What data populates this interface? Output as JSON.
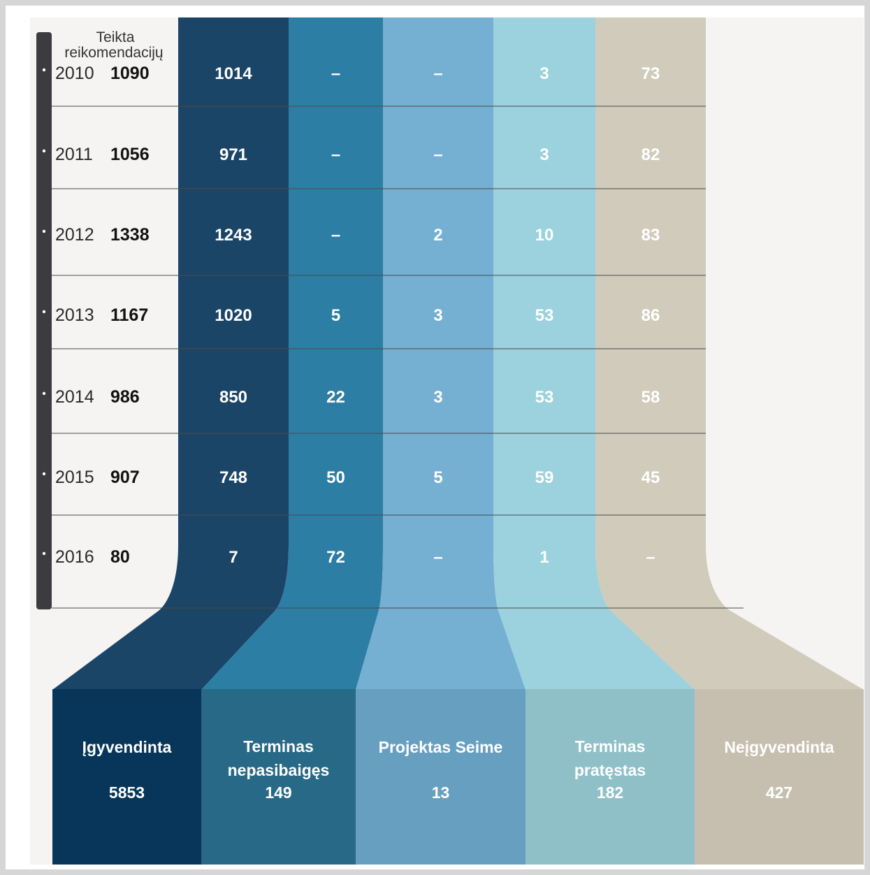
{
  "chart_data": {
    "type": "table",
    "header": "Teikta reikomendacijų",
    "years": [
      "2010",
      "2011",
      "2012",
      "2013",
      "2014",
      "2015",
      "2016"
    ],
    "totals": [
      "1090",
      "1056",
      "1338",
      "1167",
      "986",
      "907",
      "80"
    ],
    "series": [
      {
        "name": "Įgyvendinta",
        "color": "#1b4567",
        "footer_color": "#07365a",
        "values": [
          "1014",
          "971",
          "1243",
          "1020",
          "850",
          "748",
          "7"
        ],
        "total": "5853"
      },
      {
        "name": "Terminas nepasibaigęs",
        "color": "#2c7ea5",
        "footer_color": "#276986",
        "values": [
          "–",
          "–",
          "–",
          "5",
          "22",
          "50",
          "72"
        ],
        "total": "149"
      },
      {
        "name": "Projektas Seime",
        "color": "#75afd2",
        "footer_color": "#679fc0",
        "values": [
          "–",
          "–",
          "2",
          "3",
          "3",
          "5",
          "–"
        ],
        "total": "13"
      },
      {
        "name": "Terminas pratęstas",
        "color": "#9bd2dd",
        "footer_color": "#8fc0c8",
        "values": [
          "3",
          "3",
          "10",
          "53",
          "53",
          "59",
          "1"
        ],
        "total": "182"
      },
      {
        "name": "Neįgyvendinta",
        "color": "#d0cbba",
        "footer_color": "#c6bfb0",
        "values": [
          "73",
          "82",
          "83",
          "86",
          "58",
          "45",
          "–"
        ],
        "total": "427"
      }
    ]
  }
}
